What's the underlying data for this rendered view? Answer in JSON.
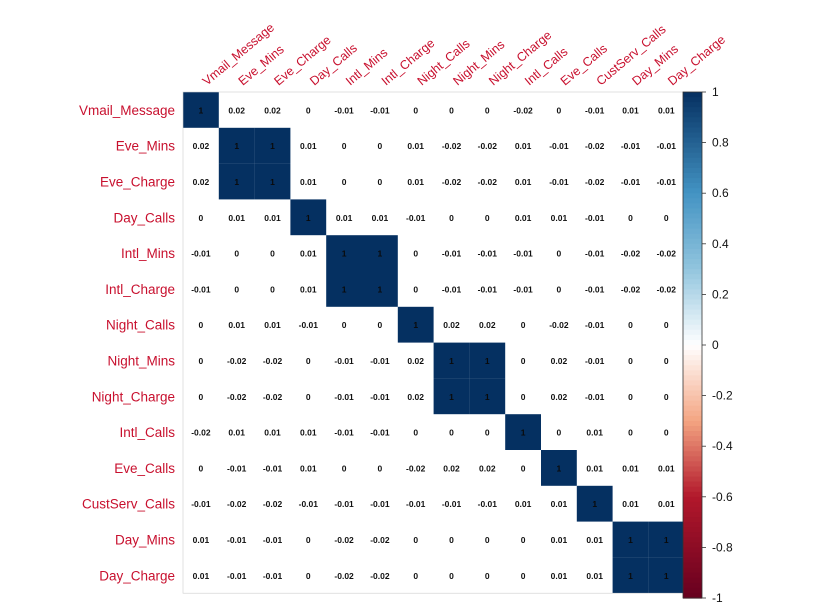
{
  "chart_data": {
    "type": "heatmap",
    "variables": [
      "Vmail_Message",
      "Eve_Mins",
      "Eve_Charge",
      "Day_Calls",
      "Intl_Mins",
      "Intl_Charge",
      "Night_Calls",
      "Night_Mins",
      "Night_Charge",
      "Intl_Calls",
      "Eve_Calls",
      "CustServ_Calls",
      "Day_Mins",
      "Day_Charge"
    ],
    "matrix": [
      [
        1,
        0.02,
        0.02,
        0,
        -0.01,
        -0.01,
        0,
        0,
        0,
        -0.02,
        0,
        -0.01,
        0.01,
        0.01
      ],
      [
        0.02,
        1,
        1,
        0.01,
        0,
        0,
        0.01,
        -0.02,
        -0.02,
        0.01,
        -0.01,
        -0.02,
        -0.01,
        -0.01
      ],
      [
        0.02,
        1,
        1,
        0.01,
        0,
        0,
        0.01,
        -0.02,
        -0.02,
        0.01,
        -0.01,
        -0.02,
        -0.01,
        -0.01
      ],
      [
        0,
        0.01,
        0.01,
        1,
        0.01,
        0.01,
        -0.01,
        0,
        0,
        0.01,
        0.01,
        -0.01,
        0,
        0
      ],
      [
        -0.01,
        0,
        0,
        0.01,
        1,
        1,
        0,
        -0.01,
        -0.01,
        -0.01,
        0,
        -0.01,
        -0.02,
        -0.02
      ],
      [
        -0.01,
        0,
        0,
        0.01,
        1,
        1,
        0,
        -0.01,
        -0.01,
        -0.01,
        0,
        -0.01,
        -0.02,
        -0.02
      ],
      [
        0,
        0.01,
        0.01,
        -0.01,
        0,
        0,
        1,
        0.02,
        0.02,
        0,
        -0.02,
        -0.01,
        0,
        0
      ],
      [
        0,
        -0.02,
        -0.02,
        0,
        -0.01,
        -0.01,
        0.02,
        1,
        1,
        0,
        0.02,
        -0.01,
        0,
        0
      ],
      [
        0,
        -0.02,
        -0.02,
        0,
        -0.01,
        -0.01,
        0.02,
        1,
        1,
        0,
        0.02,
        -0.01,
        0,
        0
      ],
      [
        -0.02,
        0.01,
        0.01,
        0.01,
        -0.01,
        -0.01,
        0,
        0,
        0,
        1,
        0,
        0.01,
        0,
        0
      ],
      [
        0,
        -0.01,
        -0.01,
        0.01,
        0,
        0,
        -0.02,
        0.02,
        0.02,
        0,
        1,
        0.01,
        0.01,
        0.01
      ],
      [
        -0.01,
        -0.02,
        -0.02,
        -0.01,
        -0.01,
        -0.01,
        -0.01,
        -0.01,
        -0.01,
        0.01,
        0.01,
        1,
        0.01,
        0.01
      ],
      [
        0.01,
        -0.01,
        -0.01,
        0,
        -0.02,
        -0.02,
        0,
        0,
        0,
        0,
        0.01,
        0.01,
        1,
        1
      ],
      [
        0.01,
        -0.01,
        -0.01,
        0,
        -0.02,
        -0.02,
        0,
        0,
        0,
        0,
        0.01,
        0.01,
        1,
        1
      ]
    ],
    "diagonal_label": "1",
    "colorbar": {
      "range": [
        -1,
        1
      ],
      "ticks": [
        "1",
        "0.8",
        "0.6",
        "0.4",
        "0.2",
        "0",
        "-0.2",
        "-0.4",
        "-0.6",
        "-0.8",
        "-1"
      ]
    },
    "colors": {
      "label_text": "#c8102e",
      "positive_strong": "#053061",
      "negative_strong": "#67001f",
      "neutral": "#ffffff",
      "border": "#222222"
    }
  }
}
